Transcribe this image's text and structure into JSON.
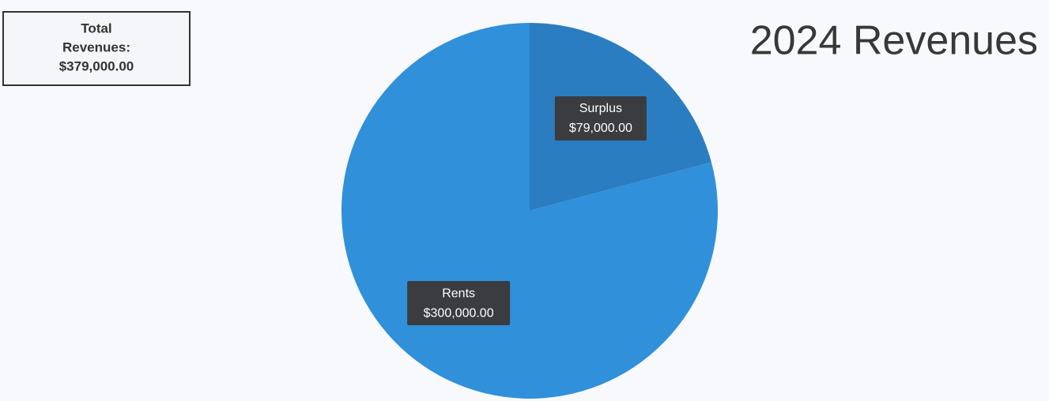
{
  "chart_data": {
    "type": "pie",
    "title": "2024 Revenues",
    "annotation": {
      "label": "Total Revenues:",
      "value": "$379,000.00"
    },
    "categories": [
      "Surplus",
      "Rents"
    ],
    "values": [
      79000,
      300000
    ],
    "value_labels": [
      "$79,000.00",
      "$300,000.00"
    ],
    "colors": [
      "#2b7dc2",
      "#3090da"
    ]
  }
}
